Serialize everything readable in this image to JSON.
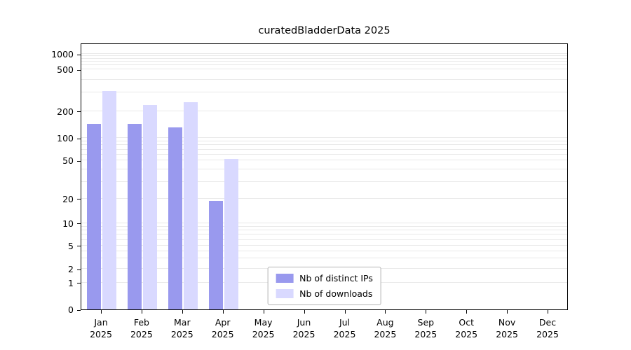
{
  "chart_data": {
    "type": "bar",
    "title": "curatedBladderData 2025",
    "scale": "log",
    "grid": true,
    "legend_position": "lower-center",
    "year": "2025",
    "months": [
      "Jan",
      "Feb",
      "Mar",
      "Apr",
      "May",
      "Jun",
      "Jul",
      "Aug",
      "Sep",
      "Oct",
      "Nov",
      "Dec"
    ],
    "y_ticks": [
      0,
      1,
      2,
      5,
      10,
      20,
      50,
      100,
      200,
      500,
      1000
    ],
    "ylim": [
      0,
      1000
    ],
    "series": [
      {
        "name": "Nb of distinct IPs",
        "color": "#9999ee",
        "values": [
          145,
          145,
          132,
          19,
          0,
          0,
          0,
          0,
          0,
          0,
          0,
          0
        ]
      },
      {
        "name": "Nb of downloads",
        "color": "#d9d9ff",
        "values": [
          310,
          230,
          245,
          52,
          0,
          0,
          0,
          0,
          0,
          0,
          0,
          0
        ]
      }
    ],
    "colors": {
      "gridline": "#e9e9e9",
      "axis": "#000000",
      "legend_border": "#b3b3b3",
      "background": "#ffffff"
    }
  }
}
